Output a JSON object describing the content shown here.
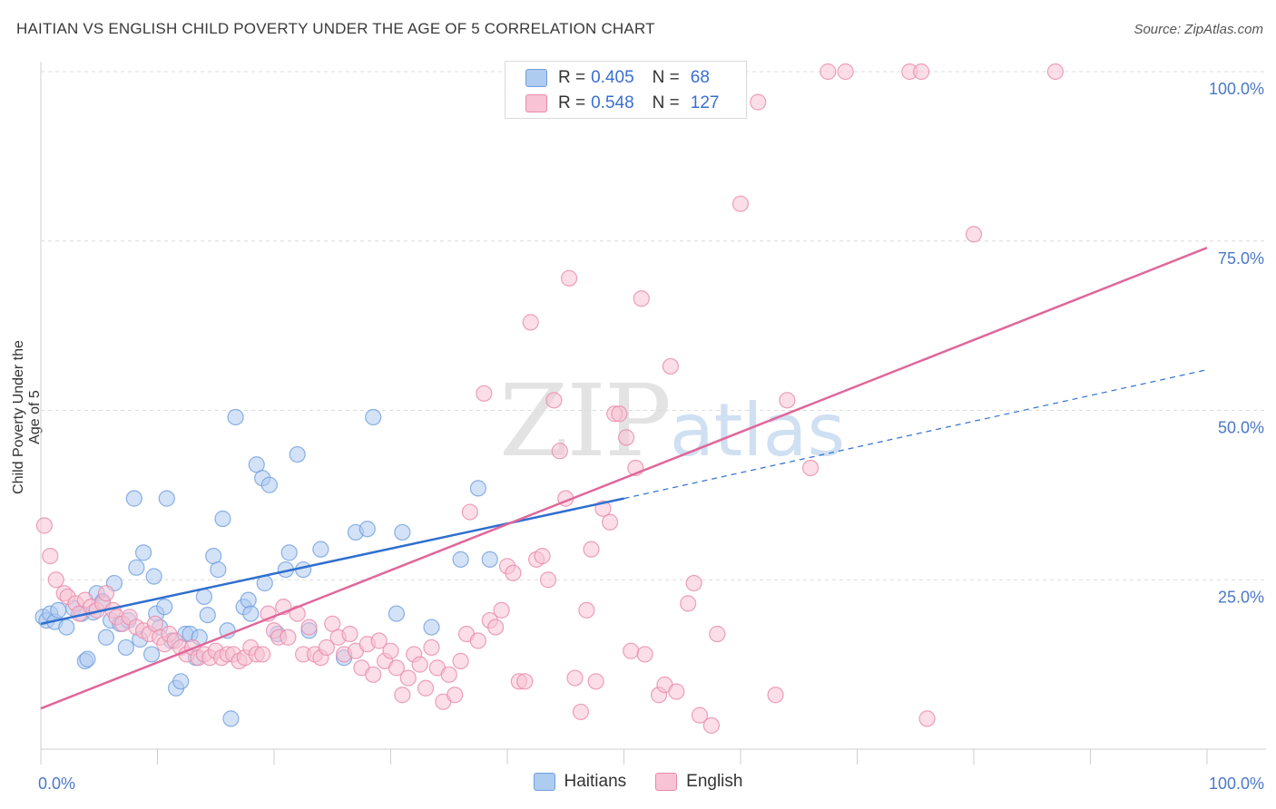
{
  "title": "HAITIAN VS ENGLISH CHILD POVERTY UNDER THE AGE OF 5 CORRELATION CHART",
  "source": "Source: ZipAtlas.com",
  "watermark": {
    "zip": "ZIP",
    "atlas": "atlas"
  },
  "legend": {
    "rows": [
      {
        "r_label": "R =",
        "r_value": "0.405",
        "n_label": "N =",
        "n_value": "68",
        "color": "#aecbf0",
        "border": "#6f9fde"
      },
      {
        "r_label": "R =",
        "r_value": "0.548",
        "n_label": "N =",
        "n_value": "127",
        "color": "#f8c3d4",
        "border": "#e98aaa"
      }
    ]
  },
  "bottom_legend": [
    {
      "label": "Haitians",
      "color": "#aecbf0",
      "border": "#6f9fde"
    },
    {
      "label": "English",
      "color": "#f8c3d4",
      "border": "#e98aaa"
    }
  ],
  "chart_data": {
    "type": "scatter",
    "title": "HAITIAN VS ENGLISH CHILD POVERTY UNDER THE AGE OF 5 CORRELATION CHART",
    "xlabel": "",
    "ylabel": "Child Poverty Under the Age of 5",
    "xlim": [
      0,
      100
    ],
    "ylim": [
      0,
      100
    ],
    "x_tick_labels": [
      "0.0%",
      "100.0%"
    ],
    "y_tick_labels": [
      {
        "value": 25,
        "label": "25.0%"
      },
      {
        "value": 50,
        "label": "50.0%"
      },
      {
        "value": 75,
        "label": "75.0%"
      },
      {
        "value": 100,
        "label": "100.0%"
      }
    ],
    "grid": "horizontal dashed",
    "legend_position": "top-center",
    "series": [
      {
        "name": "Haitians",
        "color": "#6f9fde",
        "fill": "#aecbf0",
        "trend": {
          "x1": 0,
          "y1": 18.5,
          "x2": 50,
          "y2": 37,
          "dashed_to_x": 100,
          "dashed_to_y": 56
        },
        "points": [
          [
            0.2,
            19.5
          ],
          [
            0.5,
            19.0
          ],
          [
            0.8,
            20.0
          ],
          [
            1.2,
            18.8
          ],
          [
            1.5,
            20.5
          ],
          [
            2.2,
            18.0
          ],
          [
            2.8,
            20.8
          ],
          [
            3.5,
            20.0
          ],
          [
            3.8,
            13.0
          ],
          [
            4.0,
            13.3
          ],
          [
            4.5,
            20.2
          ],
          [
            4.8,
            23.0
          ],
          [
            5.3,
            21.8
          ],
          [
            5.6,
            16.5
          ],
          [
            6.3,
            24.5
          ],
          [
            6.0,
            19.0
          ],
          [
            6.8,
            18.5
          ],
          [
            7.3,
            15.0
          ],
          [
            7.5,
            19.0
          ],
          [
            8.0,
            37.0
          ],
          [
            8.2,
            26.8
          ],
          [
            8.5,
            16.2
          ],
          [
            8.8,
            29.0
          ],
          [
            9.5,
            14.0
          ],
          [
            9.7,
            25.5
          ],
          [
            9.9,
            20.0
          ],
          [
            10.2,
            18.0
          ],
          [
            10.6,
            21.0
          ],
          [
            10.8,
            37.0
          ],
          [
            11.2,
            16.0
          ],
          [
            11.6,
            9.0
          ],
          [
            12.0,
            10.0
          ],
          [
            12.4,
            17.0
          ],
          [
            12.8,
            17.0
          ],
          [
            13.3,
            13.5
          ],
          [
            13.6,
            16.5
          ],
          [
            14.0,
            22.5
          ],
          [
            14.3,
            19.8
          ],
          [
            14.8,
            28.5
          ],
          [
            15.2,
            26.5
          ],
          [
            15.6,
            34.0
          ],
          [
            16.0,
            17.5
          ],
          [
            16.3,
            4.5
          ],
          [
            16.7,
            49.0
          ],
          [
            17.4,
            21.0
          ],
          [
            17.8,
            22.0
          ],
          [
            18.0,
            20.0
          ],
          [
            18.5,
            42.0
          ],
          [
            19.0,
            40.0
          ],
          [
            19.2,
            24.5
          ],
          [
            19.6,
            39.0
          ],
          [
            20.3,
            17.0
          ],
          [
            21.0,
            26.5
          ],
          [
            21.3,
            29.0
          ],
          [
            22.0,
            43.5
          ],
          [
            22.5,
            26.5
          ],
          [
            23.0,
            17.5
          ],
          [
            24.0,
            29.5
          ],
          [
            26.0,
            13.5
          ],
          [
            27.0,
            32.0
          ],
          [
            28.0,
            32.5
          ],
          [
            28.5,
            49.0
          ],
          [
            30.5,
            20.0
          ],
          [
            31.0,
            32.0
          ],
          [
            33.5,
            18.0
          ],
          [
            36.0,
            28.0
          ],
          [
            37.5,
            38.5
          ],
          [
            38.5,
            28.0
          ]
        ]
      },
      {
        "name": "English",
        "color": "#e98aaa",
        "fill": "#f8c3d4",
        "trend": {
          "x1": 0,
          "y1": 6,
          "x2": 100,
          "y2": 74
        },
        "points": [
          [
            0.3,
            33.0
          ],
          [
            0.8,
            28.5
          ],
          [
            1.3,
            25.0
          ],
          [
            2.0,
            23.0
          ],
          [
            2.3,
            22.5
          ],
          [
            3.0,
            21.5
          ],
          [
            3.3,
            20.0
          ],
          [
            3.8,
            22.0
          ],
          [
            4.3,
            21.0
          ],
          [
            4.8,
            20.5
          ],
          [
            5.3,
            21.5
          ],
          [
            5.6,
            23.0
          ],
          [
            6.2,
            20.5
          ],
          [
            6.5,
            19.5
          ],
          [
            7.0,
            18.5
          ],
          [
            7.6,
            19.5
          ],
          [
            8.2,
            18.0
          ],
          [
            8.8,
            17.5
          ],
          [
            9.3,
            17.0
          ],
          [
            9.8,
            18.5
          ],
          [
            10.2,
            16.5
          ],
          [
            10.6,
            15.5
          ],
          [
            11.0,
            17.0
          ],
          [
            11.5,
            16.0
          ],
          [
            12.0,
            15.0
          ],
          [
            12.5,
            14.0
          ],
          [
            13.0,
            15.0
          ],
          [
            13.5,
            13.5
          ],
          [
            14.0,
            14.0
          ],
          [
            14.5,
            13.5
          ],
          [
            15.0,
            14.5
          ],
          [
            15.5,
            13.5
          ],
          [
            16.0,
            14.0
          ],
          [
            16.5,
            14.0
          ],
          [
            17.0,
            13.0
          ],
          [
            17.5,
            13.5
          ],
          [
            18.0,
            15.0
          ],
          [
            18.5,
            14.0
          ],
          [
            19.0,
            14.0
          ],
          [
            19.5,
            20.0
          ],
          [
            20.0,
            17.5
          ],
          [
            20.4,
            16.5
          ],
          [
            20.8,
            21.0
          ],
          [
            21.2,
            16.5
          ],
          [
            22.0,
            20.0
          ],
          [
            22.5,
            14.0
          ],
          [
            23.0,
            18.0
          ],
          [
            23.5,
            14.0
          ],
          [
            24.0,
            13.5
          ],
          [
            24.5,
            15.0
          ],
          [
            25.0,
            18.5
          ],
          [
            25.5,
            16.5
          ],
          [
            26.0,
            14.0
          ],
          [
            26.5,
            17.0
          ],
          [
            27.0,
            14.5
          ],
          [
            27.5,
            12.0
          ],
          [
            28.0,
            15.5
          ],
          [
            28.5,
            11.0
          ],
          [
            29.0,
            16.0
          ],
          [
            29.5,
            13.0
          ],
          [
            30.0,
            14.5
          ],
          [
            30.5,
            12.0
          ],
          [
            31.0,
            8.0
          ],
          [
            31.5,
            10.5
          ],
          [
            32.0,
            14.0
          ],
          [
            32.5,
            12.5
          ],
          [
            33.0,
            9.0
          ],
          [
            33.5,
            15.0
          ],
          [
            34.0,
            12.0
          ],
          [
            34.5,
            7.0
          ],
          [
            35.0,
            11.0
          ],
          [
            35.5,
            8.0
          ],
          [
            36.0,
            13.0
          ],
          [
            36.5,
            17.0
          ],
          [
            36.8,
            35.0
          ],
          [
            37.5,
            16.0
          ],
          [
            38.0,
            52.5
          ],
          [
            38.5,
            19.0
          ],
          [
            39.0,
            18.0
          ],
          [
            39.5,
            20.5
          ],
          [
            40.0,
            27.0
          ],
          [
            40.5,
            26.0
          ],
          [
            41.0,
            10.0
          ],
          [
            41.5,
            10.0
          ],
          [
            42.0,
            63.0
          ],
          [
            42.5,
            28.0
          ],
          [
            43.0,
            28.5
          ],
          [
            43.5,
            25.0
          ],
          [
            44.0,
            51.5
          ],
          [
            44.5,
            44.0
          ],
          [
            45.0,
            37.0
          ],
          [
            45.3,
            69.5
          ],
          [
            45.8,
            10.5
          ],
          [
            46.3,
            5.5
          ],
          [
            46.8,
            20.5
          ],
          [
            47.2,
            29.5
          ],
          [
            47.6,
            10.0
          ],
          [
            48.2,
            35.5
          ],
          [
            48.8,
            33.5
          ],
          [
            49.2,
            49.5
          ],
          [
            49.6,
            49.5
          ],
          [
            50.2,
            46.0
          ],
          [
            50.6,
            14.5
          ],
          [
            51.0,
            41.5
          ],
          [
            51.5,
            66.5
          ],
          [
            51.8,
            14.0
          ],
          [
            53.0,
            8.0
          ],
          [
            53.5,
            9.5
          ],
          [
            54.0,
            56.5
          ],
          [
            54.5,
            8.5
          ],
          [
            55.5,
            21.5
          ],
          [
            56.0,
            24.5
          ],
          [
            56.5,
            5.0
          ],
          [
            57.5,
            3.5
          ],
          [
            58.0,
            17.0
          ],
          [
            60.0,
            80.5
          ],
          [
            61.5,
            95.5
          ],
          [
            63.0,
            8.0
          ],
          [
            64.0,
            51.5
          ],
          [
            66.0,
            41.5
          ],
          [
            67.5,
            100.0
          ],
          [
            69.0,
            100.0
          ],
          [
            74.5,
            100.0
          ],
          [
            75.5,
            100.0
          ],
          [
            76.0,
            4.5
          ],
          [
            80.0,
            76.0
          ],
          [
            87.0,
            100.0
          ]
        ]
      }
    ]
  }
}
